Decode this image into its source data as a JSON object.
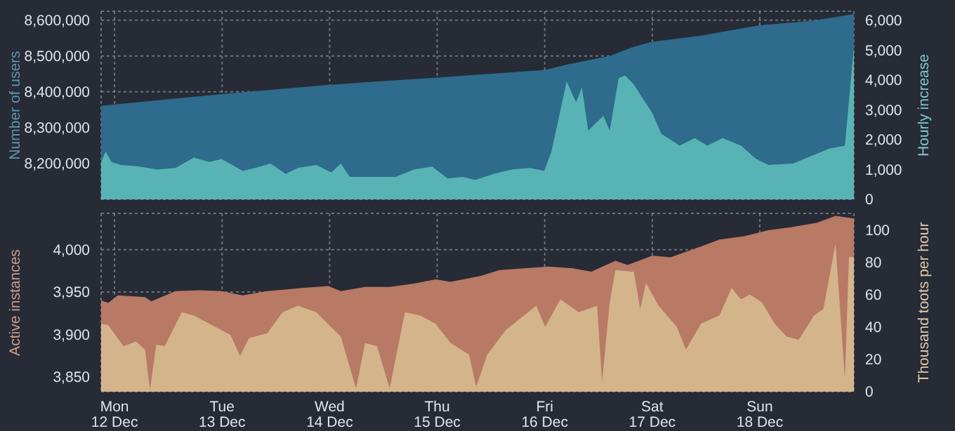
{
  "chart_data": [
    {
      "type": "area",
      "ylabel": "Number of users",
      "y2label": "Hourly increase",
      "xlim": [
        "--12-11T21:00",
        "--12-18T21:00"
      ],
      "xticks": [
        {
          "value": "--12-12",
          "label": null
        },
        {
          "value": "--12-13",
          "label": null
        },
        {
          "value": "--12-14",
          "label": null
        },
        {
          "value": "--12-15",
          "label": null
        },
        {
          "value": "--12-16",
          "label": null
        },
        {
          "value": "--12-17",
          "label": null
        },
        {
          "value": "--12-18",
          "label": null
        }
      ],
      "ylim": [
        8100000,
        8625000
      ],
      "yticks": [
        {
          "value": 8200000,
          "label": "8,200,000"
        },
        {
          "value": 8300000,
          "label": "8,300,000"
        },
        {
          "value": 8400000,
          "label": "8,400,000"
        },
        {
          "value": 8500000,
          "label": "8,500,000"
        },
        {
          "value": 8600000,
          "label": "8,600,000"
        }
      ],
      "y2lim": [
        0,
        6300
      ],
      "y2ticks": [
        0,
        {
          "value": 1000,
          "label": "1,000"
        },
        {
          "value": 2000,
          "label": "2,000"
        },
        {
          "value": 3000,
          "label": "3,000"
        },
        {
          "value": 4000,
          "label": "4,000"
        },
        {
          "value": 5000,
          "label": "5,000"
        },
        {
          "value": 6000,
          "label": "6,000"
        }
      ],
      "grid": true,
      "legend": false,
      "tick_labels": "y",
      "series": [
        {
          "color": "#2e6b8c",
          "x": [
            "--12-11T21:00",
            "--12-13T00:00",
            "--12-14T00:00",
            "--12-15T00:00",
            "--12-16T00:00",
            "--12-16T05:36",
            "--12-16T14:30",
            "--12-16T19:54",
            "--12-17T00:00",
            "--12-17T10:54",
            "--12-18T00:00",
            "--12-18T11:30",
            "--12-18T21:00"
          ],
          "values": [
            8361000,
            8394000,
            8420000,
            8440000,
            8461000,
            8478000,
            8500000,
            8526000,
            8540000,
            8557000,
            8586000,
            8598000,
            8617000
          ]
        },
        {
          "color": "#58b4b4",
          "axis": "y2",
          "x": [
            "--12-11T21:00",
            "--12-11T22:00",
            "--12-11T23:18",
            "--12-12T01:24",
            "--12-12T05:30",
            "--12-12T09:30",
            "--12-12T13:36",
            "--12-12T17:42",
            "--12-12T21:06",
            "--12-12T23:54",
            "--12-13T04:36",
            "--12-13T07:24",
            "--12-13T10:48",
            "--12-13T14:12",
            "--12-13T16:54",
            "--12-13T21:00",
            "--12-14T00:24",
            "--12-14T02:30",
            "--12-14T04:30",
            "--12-14T09:18",
            "--12-14T14:42",
            "--12-14T18:48",
            "--12-14T22:54",
            "--12-15T02:18",
            "--12-15T05:42",
            "--12-15T08:30",
            "--12-15T12:36",
            "--12-15T16:36",
            "--12-15T20:42",
            "--12-15T23:54",
            "--12-16T01:30",
            "--12-16T04:54",
            "--12-16T07:00",
            "--12-16T08:18",
            "--12-16T09:42",
            "--12-16T13:06",
            "--12-16T14:30",
            "--12-16T16:30",
            "--12-16T17:54",
            "--12-16T19:54",
            "--12-16T22:00",
            "--12-17T00:00",
            "--12-17T02:00",
            "--12-17T04:06",
            "--12-17T06:06",
            "--12-17T09:30",
            "--12-17T12:18",
            "--12-17T15:42",
            "--12-17T19:48",
            "--12-17T23:12",
            "--12-18T01:54",
            "--12-18T07:24",
            "--12-18T11:30",
            "--12-18T15:30",
            "--12-18T19:00",
            "--12-18T21:00"
          ],
          "values": [
            1250,
            1600,
            1250,
            1150,
            1100,
            1000,
            1050,
            1400,
            1250,
            1350,
            950,
            1050,
            1200,
            850,
            1050,
            1150,
            900,
            1200,
            750,
            750,
            750,
            1000,
            1100,
            700,
            750,
            650,
            850,
            1000,
            1050,
            950,
            1600,
            3950,
            3250,
            3750,
            2300,
            2800,
            2300,
            4050,
            4150,
            3850,
            3350,
            2900,
            2200,
            2000,
            1800,
            2050,
            1800,
            2050,
            1800,
            1350,
            1150,
            1200,
            1450,
            1700,
            1800,
            5100
          ]
        }
      ]
    },
    {
      "type": "area",
      "ylabel": "Active instances",
      "y2label": "Thousand toots per hour",
      "xlim": [
        "--12-11T21:00",
        "--12-18T21:00"
      ],
      "xticks": [
        {
          "value": "--12-12",
          "label": "Mon\n12 Dec"
        },
        {
          "value": "--12-13",
          "label": "Tue\n13 Dec"
        },
        {
          "value": "--12-14",
          "label": "Wed\n14 Dec"
        },
        {
          "value": "--12-15",
          "label": "Thu\n15 Dec"
        },
        {
          "value": "--12-16",
          "label": "Fri\n16 Dec"
        },
        {
          "value": "--12-17",
          "label": "Sat\n17 Dec"
        },
        {
          "value": "--12-18",
          "label": "Sun\n18 Dec"
        }
      ],
      "ylim": [
        3832,
        4043
      ],
      "yticks": [
        {
          "value": 3850,
          "label": "3,850"
        },
        {
          "value": 3900,
          "label": "3,900"
        },
        {
          "value": 3950,
          "label": "3,950"
        },
        {
          "value": 4000,
          "label": "4,000"
        }
      ],
      "y2lim": [
        0,
        110
      ],
      "y2ticks": [
        0,
        20,
        40,
        60,
        80,
        100
      ],
      "grid": true,
      "legend": false,
      "series": [
        {
          "color": "#b87965",
          "x": [
            "--12-11T21:00",
            "--12-11T22:36",
            "--12-12T00:42",
            "--12-12T06:48",
            "--12-12T08:12",
            "--12-12T13:36",
            "--12-12T19:06",
            "--12-12T23:54",
            "--12-13T04:36",
            "--12-13T10:06",
            "--12-13T18:18",
            "--12-13T23:42",
            "--12-14T02:30",
            "--12-14T07:54",
            "--12-14T13:24",
            "--12-14T18:48",
            "--12-14T23:42",
            "--12-15T03:00",
            "--12-15T09:48",
            "--12-15T13:54",
            "--12-15T19:24",
            "--12-16T00:48",
            "--12-16T06:18",
            "--12-16T10:24",
            "--12-16T15:48",
            "--12-16T18:30",
            "--12-17T00:00",
            "--12-17T04:06",
            "--12-17T10:54",
            "--12-17T15:00",
            "--12-17T20:30",
            "--12-18T01:54",
            "--12-18T07:24",
            "--12-18T12:48",
            "--12-18T16:54",
            "--12-18T21:00"
          ],
          "values": [
            3940,
            3937,
            3946,
            3944,
            3939,
            3951,
            3952,
            3951,
            3946,
            3951,
            3955,
            3957,
            3951,
            3956,
            3956,
            3960,
            3965,
            3962,
            3969,
            3976,
            3978,
            3980,
            3978,
            3974,
            3987,
            3982,
            3993,
            3991,
            4004,
            4012,
            4016,
            4023,
            4027,
            4032,
            4040,
            4037
          ]
        },
        {
          "color": "#d4b58b",
          "axis": "y2",
          "x": [
            "--12-11T21:00",
            "--12-11T22:36",
            "--12-12T02:00",
            "--12-12T04:48",
            "--12-12T06:48",
            "--12-12T07:54",
            "--12-12T09:18",
            "--12-12T11:12",
            "--12-12T15:00",
            "--12-12T17:42",
            "--12-12T21:06",
            "--12-13T01:54",
            "--12-13T04:00",
            "--12-13T06:00",
            "--12-13T10:06",
            "--12-13T13:30",
            "--12-13T16:54",
            "--12-13T21:00",
            "--12-14T02:30",
            "--12-14T05:54",
            "--12-14T07:54",
            "--12-14T10:36",
            "--12-14T13:24",
            "--12-14T16:48",
            "--12-14T20:12",
            "--12-14T23:36",
            "--12-15T03:00",
            "--12-15T07:06",
            "--12-15T08:42",
            "--12-15T11:12",
            "--12-15T15:18",
            "--12-15T19:24",
            "--12-15T22:06",
            "--12-16T00:06",
            "--12-16T03:30",
            "--12-16T07:36",
            "--12-16T11:42",
            "--12-16T12:48",
            "--12-16T14:30",
            "--12-16T15:48",
            "--12-16T19:54",
            "--12-16T21:18",
            "--12-16T22:36",
            "--12-17T01:24",
            "--12-17T05:30",
            "--12-17T07:30",
            "--12-17T10:54",
            "--12-17T15:00",
            "--12-17T17:42",
            "--12-17T19:48",
            "--12-17T21:48",
            "--12-18T00:30",
            "--12-18T03:18",
            "--12-18T06:00",
            "--12-18T08:42",
            "--12-18T12:06",
            "--12-18T14:12",
            "--12-18T16:54",
            "--12-18T19:00",
            "--12-18T19:54",
            "--12-18T21:00"
          ],
          "values": [
            42,
            41,
            28,
            31,
            26,
            1,
            29,
            28,
            49,
            47,
            42,
            35,
            22,
            33,
            36,
            49,
            53,
            49,
            34,
            2,
            30,
            28,
            2,
            49,
            47,
            42,
            30,
            23,
            3,
            23,
            38,
            47,
            53,
            40,
            57,
            49,
            53,
            6,
            55,
            75,
            74,
            51,
            67,
            53,
            40,
            26,
            42,
            47,
            64,
            57,
            60,
            55,
            42,
            34,
            32,
            47,
            51,
            91,
            8,
            83,
            83
          ]
        }
      ]
    }
  ]
}
